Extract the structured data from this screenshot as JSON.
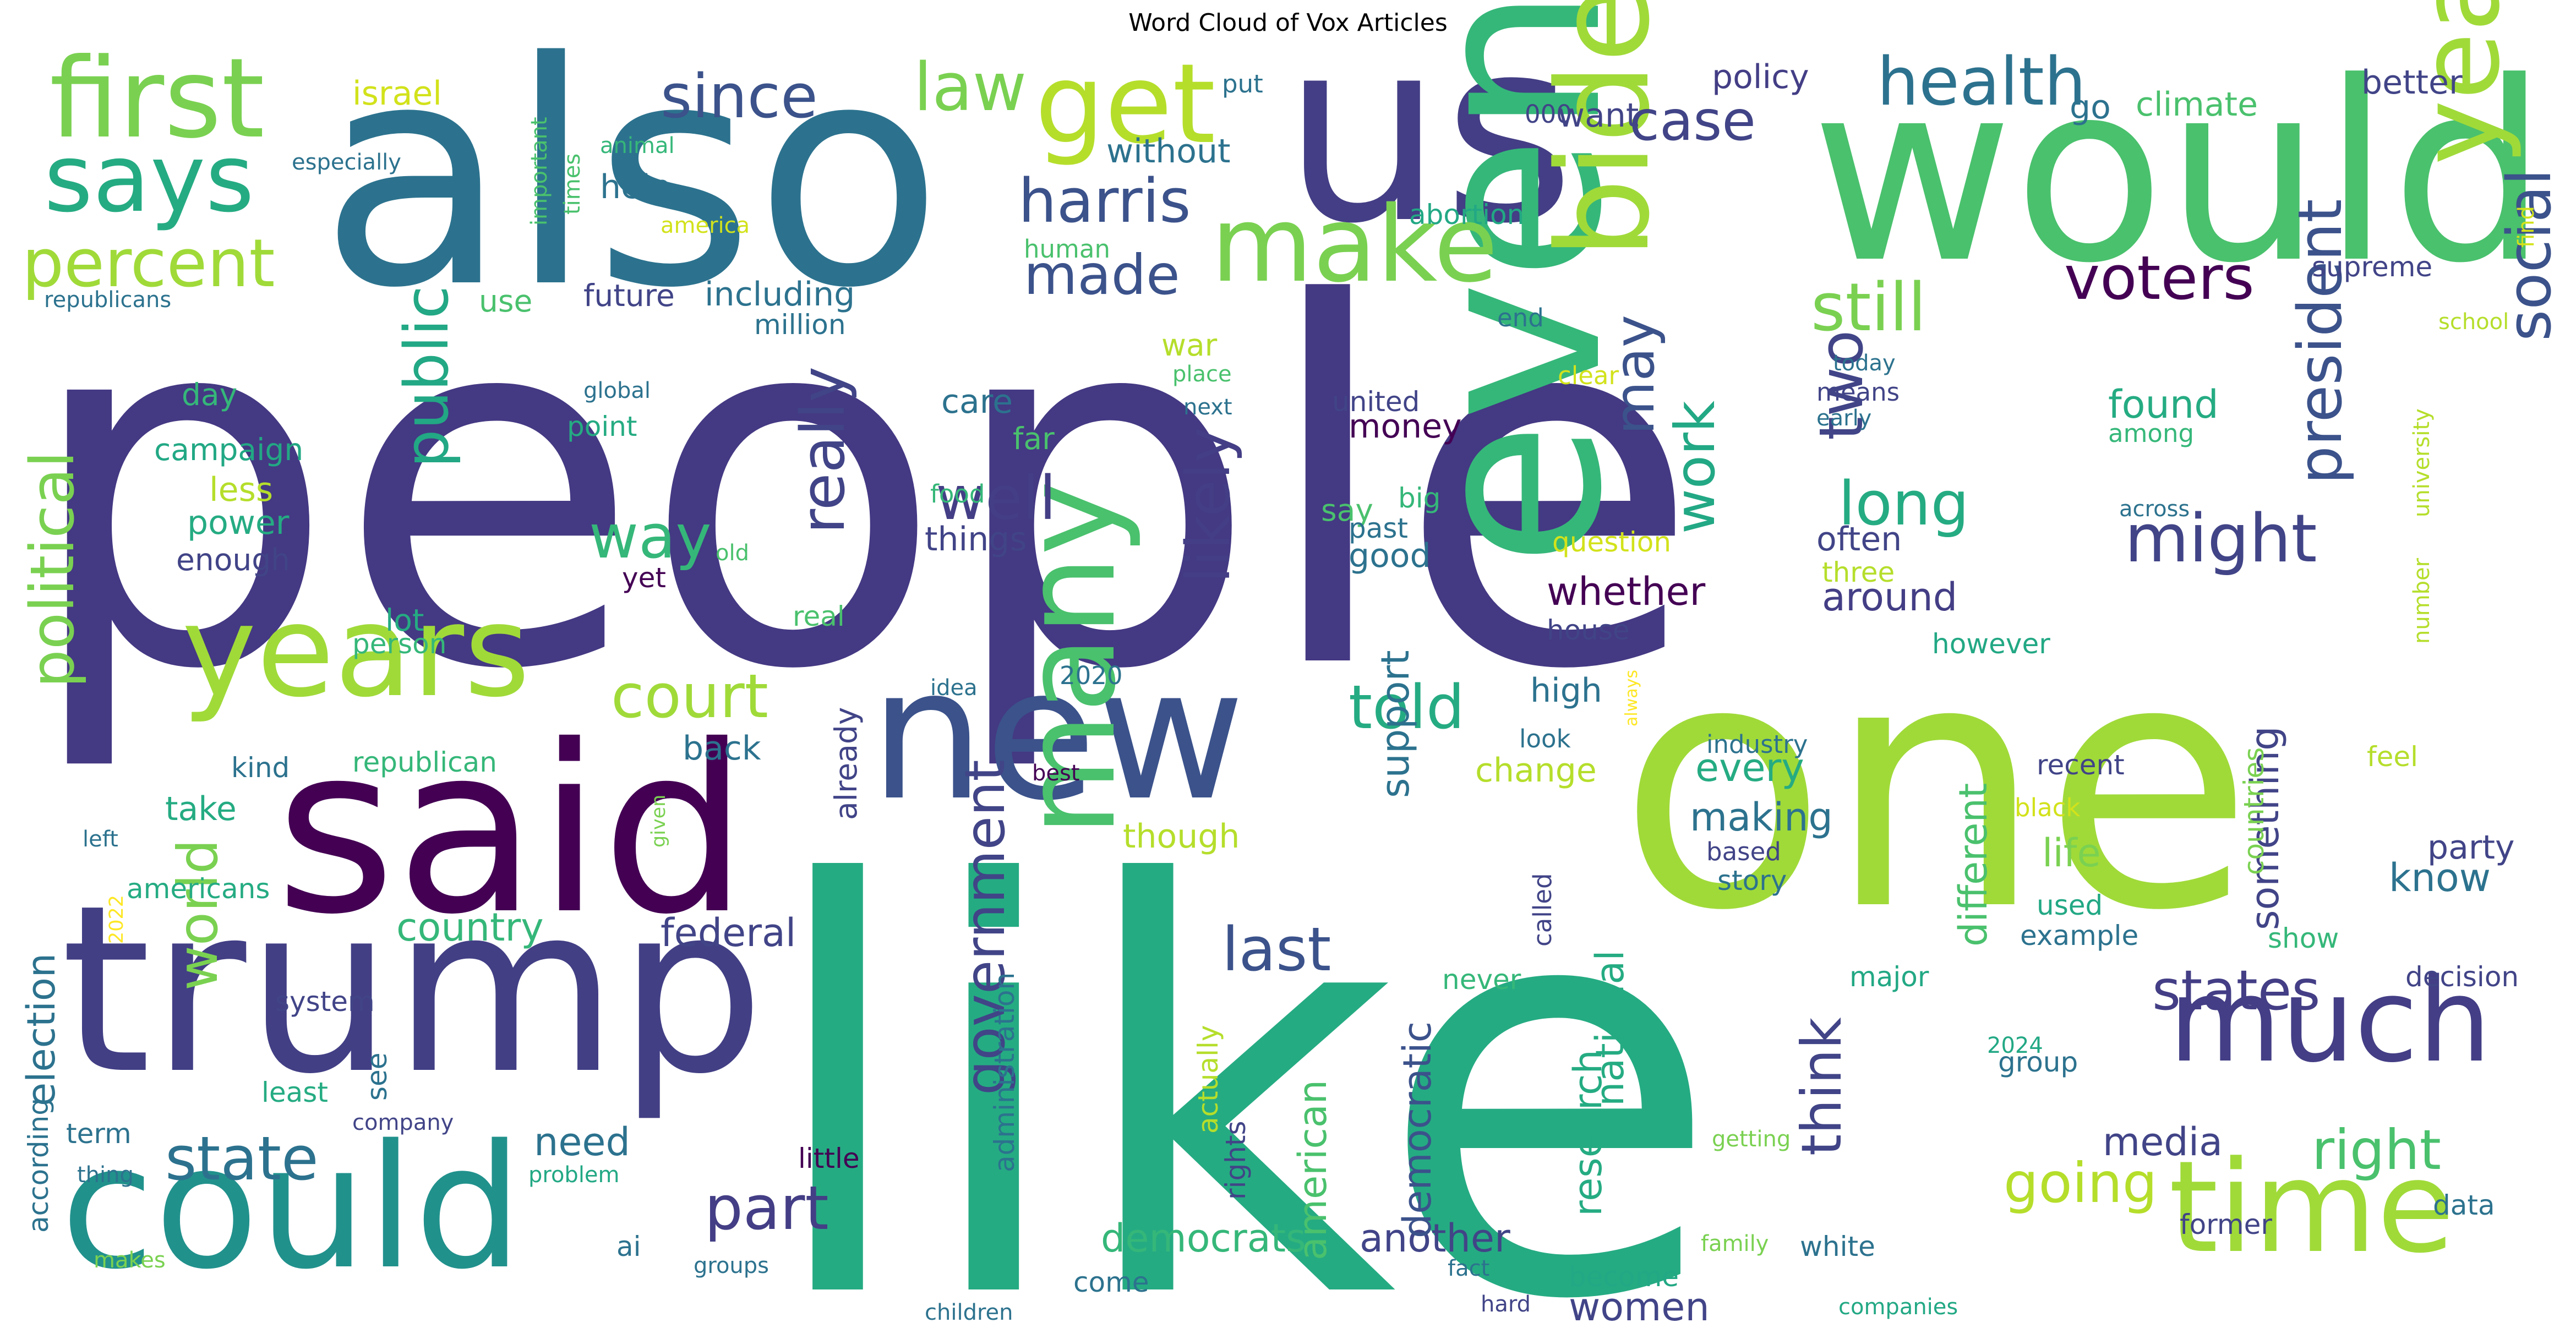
{
  "title": "Word Cloud of Vox Articles",
  "words": [
    {
      "text": "people",
      "color": "#443983"
    },
    {
      "text": "like",
      "color": "#25ab82"
    },
    {
      "text": "one",
      "color": "#a0da39"
    },
    {
      "text": "also",
      "color": "#2c728e"
    },
    {
      "text": "would",
      "color": "#4ac16d"
    },
    {
      "text": "us",
      "color": "#433e85"
    },
    {
      "text": "said",
      "color": "#440154"
    },
    {
      "text": "trump",
      "color": "#423f85"
    },
    {
      "text": "could",
      "color": "#21918c"
    },
    {
      "text": "even",
      "color": "#35b779"
    },
    {
      "text": "new",
      "color": "#3b528b"
    },
    {
      "text": "many",
      "color": "#4ac16d"
    },
    {
      "text": "biden",
      "color": "#a0da39"
    },
    {
      "text": "year",
      "color": "#a0da39"
    },
    {
      "text": "time",
      "color": "#a0da39"
    },
    {
      "text": "years",
      "color": "#a0da39"
    },
    {
      "text": "make",
      "color": "#7ad151"
    },
    {
      "text": "much",
      "color": "#433e85"
    },
    {
      "text": "first",
      "color": "#7ad151"
    },
    {
      "text": "get",
      "color": "#b5de2b"
    },
    {
      "text": "says",
      "color": "#25ab82"
    },
    {
      "text": "percent",
      "color": "#a0da39"
    },
    {
      "text": "since",
      "color": "#3b528b"
    },
    {
      "text": "law",
      "color": "#7ad151"
    },
    {
      "text": "health",
      "color": "#2c728e"
    },
    {
      "text": "case",
      "color": "#414487"
    },
    {
      "text": "harris",
      "color": "#3b528b"
    },
    {
      "text": "still",
      "color": "#7ad151"
    },
    {
      "text": "voters",
      "color": "#440154"
    },
    {
      "text": "made",
      "color": "#3b528b"
    },
    {
      "text": "might",
      "color": "#414487"
    },
    {
      "text": "president",
      "color": "#3b528b"
    },
    {
      "text": "social",
      "color": "#3b528b"
    },
    {
      "text": "political",
      "color": "#7ad151"
    },
    {
      "text": "public",
      "color": "#22a884"
    },
    {
      "text": "way",
      "color": "#35b779"
    },
    {
      "text": "well",
      "color": "#433e85"
    },
    {
      "text": "likely",
      "color": "#433e85"
    },
    {
      "text": "really",
      "color": "#414487"
    },
    {
      "text": "court",
      "color": "#a0da39"
    },
    {
      "text": "told",
      "color": "#25ab82"
    },
    {
      "text": "two",
      "color": "#414487"
    },
    {
      "text": "long",
      "color": "#25ab82"
    },
    {
      "text": "work",
      "color": "#22a884"
    },
    {
      "text": "may",
      "color": "#3b528b"
    },
    {
      "text": "state",
      "color": "#2c728e"
    },
    {
      "text": "part",
      "color": "#433e85"
    },
    {
      "text": "last",
      "color": "#3b528b"
    },
    {
      "text": "government",
      "color": "#414487"
    },
    {
      "text": "world",
      "color": "#7ad151"
    },
    {
      "text": "states",
      "color": "#433e85"
    },
    {
      "text": "right",
      "color": "#4ac16d"
    },
    {
      "text": "think",
      "color": "#414487"
    },
    {
      "text": "going",
      "color": "#b5de2b"
    },
    {
      "text": "country",
      "color": "#35b779"
    },
    {
      "text": "federal",
      "color": "#414487"
    },
    {
      "text": "election",
      "color": "#2c728e"
    },
    {
      "text": "need",
      "color": "#2c728e"
    },
    {
      "text": "democrats",
      "color": "#35b779"
    },
    {
      "text": "another",
      "color": "#414487"
    },
    {
      "text": "women",
      "color": "#414487"
    },
    {
      "text": "media",
      "color": "#414487"
    },
    {
      "text": "research",
      "color": "#25ab82"
    },
    {
      "text": "american",
      "color": "#4ac16d"
    },
    {
      "text": "democratic",
      "color": "#3b528b"
    },
    {
      "text": "support",
      "color": "#2c728e"
    },
    {
      "text": "national",
      "color": "#25ab82"
    },
    {
      "text": "different",
      "color": "#4ac16d"
    },
    {
      "text": "something",
      "color": "#414487"
    },
    {
      "text": "every",
      "color": "#25ab82"
    },
    {
      "text": "making",
      "color": "#2c728e"
    },
    {
      "text": "life",
      "color": "#7ad151"
    },
    {
      "text": "know",
      "color": "#2c728e"
    },
    {
      "text": "party",
      "color": "#414487"
    },
    {
      "text": "around",
      "color": "#433e85"
    },
    {
      "text": "whether",
      "color": "#440154"
    },
    {
      "text": "often",
      "color": "#414487"
    },
    {
      "text": "found",
      "color": "#25ab82"
    },
    {
      "text": "including",
      "color": "#2c728e"
    },
    {
      "text": "without",
      "color": "#2c728e"
    },
    {
      "text": "policy",
      "color": "#433e85"
    },
    {
      "text": "want",
      "color": "#414487"
    },
    {
      "text": "go",
      "color": "#2c728e"
    },
    {
      "text": "climate",
      "color": "#4ac16d"
    },
    {
      "text": "better",
      "color": "#414487"
    },
    {
      "text": "israel",
      "color": "#d2e21b"
    },
    {
      "text": "help",
      "color": "#2c728e"
    },
    {
      "text": "use",
      "color": "#4ac16d"
    },
    {
      "text": "future",
      "color": "#414487"
    },
    {
      "text": "million",
      "color": "#2c728e"
    },
    {
      "text": "day",
      "color": "#35b779"
    },
    {
      "text": "care",
      "color": "#2c728e"
    },
    {
      "text": "far",
      "color": "#4ac16d"
    },
    {
      "text": "things",
      "color": "#414487"
    },
    {
      "text": "good",
      "color": "#2c728e"
    },
    {
      "text": "money",
      "color": "#440154"
    },
    {
      "text": "say",
      "color": "#4ac16d"
    },
    {
      "text": "less",
      "color": "#b5de2b"
    },
    {
      "text": "power",
      "color": "#25ab82"
    },
    {
      "text": "campaign",
      "color": "#22a884"
    },
    {
      "text": "enough",
      "color": "#414487"
    },
    {
      "text": "point",
      "color": "#25ab82"
    },
    {
      "text": "lot",
      "color": "#25ab82"
    },
    {
      "text": "person",
      "color": "#35b779"
    },
    {
      "text": "war",
      "color": "#b5de2b"
    },
    {
      "text": "change",
      "color": "#b5de2b"
    },
    {
      "text": "high",
      "color": "#2c728e"
    },
    {
      "text": "back",
      "color": "#2c728e"
    },
    {
      "text": "though",
      "color": "#b5de2b"
    },
    {
      "text": "already",
      "color": "#414487"
    },
    {
      "text": "take",
      "color": "#25ab82"
    },
    {
      "text": "republican",
      "color": "#35b779"
    },
    {
      "text": "kind",
      "color": "#2c728e"
    },
    {
      "text": "americans",
      "color": "#25ab82"
    },
    {
      "text": "system",
      "color": "#414487"
    },
    {
      "text": "see",
      "color": "#2c728e"
    },
    {
      "text": "least",
      "color": "#25ab82"
    },
    {
      "text": "term",
      "color": "#2c728e"
    },
    {
      "text": "according",
      "color": "#2c728e"
    },
    {
      "text": "ai",
      "color": "#2c728e"
    },
    {
      "text": "little",
      "color": "#440154"
    },
    {
      "text": "actually",
      "color": "#b5de2b"
    },
    {
      "text": "administration",
      "color": "#2c728e"
    },
    {
      "text": "rights",
      "color": "#414487"
    },
    {
      "text": "united",
      "color": "#414487"
    },
    {
      "text": "past",
      "color": "#2c728e"
    },
    {
      "text": "big",
      "color": "#35b779"
    },
    {
      "text": "question",
      "color": "#d2e21b"
    },
    {
      "text": "yet",
      "color": "#440154"
    },
    {
      "text": "old",
      "color": "#4ac16d"
    },
    {
      "text": "real",
      "color": "#4ac16d"
    },
    {
      "text": "2020",
      "color": "#2c728e"
    },
    {
      "text": "idea",
      "color": "#2c728e"
    },
    {
      "text": "best",
      "color": "#440154"
    },
    {
      "text": "look",
      "color": "#2c728e"
    },
    {
      "text": "house",
      "color": "#414487"
    },
    {
      "text": "however",
      "color": "#22a884"
    },
    {
      "text": "three",
      "color": "#b5de2b"
    },
    {
      "text": "means",
      "color": "#414487"
    },
    {
      "text": "early",
      "color": "#2c728e"
    },
    {
      "text": "today",
      "color": "#2c728e"
    },
    {
      "text": "among",
      "color": "#35b779"
    },
    {
      "text": "across",
      "color": "#2c728e"
    },
    {
      "text": "university",
      "color": "#b5de2b"
    },
    {
      "text": "number",
      "color": "#b5de2b"
    },
    {
      "text": "school",
      "color": "#b5de2b"
    },
    {
      "text": "supreme",
      "color": "#414487"
    },
    {
      "text": "find",
      "color": "#d2e21b"
    },
    {
      "text": "000",
      "color": "#414487"
    },
    {
      "text": "put",
      "color": "#2c728e"
    },
    {
      "text": "abortion",
      "color": "#22a884"
    },
    {
      "text": "human",
      "color": "#4ac16d"
    },
    {
      "text": "food",
      "color": "#35b779"
    },
    {
      "text": "end",
      "color": "#2c728e"
    },
    {
      "text": "place",
      "color": "#4ac16d"
    },
    {
      "text": "next",
      "color": "#2c728e"
    },
    {
      "text": "clear",
      "color": "#d2e21b"
    },
    {
      "text": "global",
      "color": "#2c728e"
    },
    {
      "text": "important",
      "color": "#4ac16d"
    },
    {
      "text": "times",
      "color": "#4ac16d"
    },
    {
      "text": "animal",
      "color": "#35b779"
    },
    {
      "text": "especially",
      "color": "#2c728e"
    },
    {
      "text": "america",
      "color": "#d2e21b"
    },
    {
      "text": "republicans",
      "color": "#2c728e"
    },
    {
      "text": "industry",
      "color": "#2c728e"
    },
    {
      "text": "recent",
      "color": "#414487"
    },
    {
      "text": "feel",
      "color": "#b5de2b"
    },
    {
      "text": "black",
      "color": "#d2e21b"
    },
    {
      "text": "based",
      "color": "#414487"
    },
    {
      "text": "story",
      "color": "#2c728e"
    },
    {
      "text": "used",
      "color": "#22a884"
    },
    {
      "text": "example",
      "color": "#2c728e"
    },
    {
      "text": "show",
      "color": "#35b779"
    },
    {
      "text": "countries",
      "color": "#7ad151"
    },
    {
      "text": "called",
      "color": "#414487"
    },
    {
      "text": "never",
      "color": "#35b779"
    },
    {
      "text": "major",
      "color": "#22a884"
    },
    {
      "text": "decision",
      "color": "#414487"
    },
    {
      "text": "group",
      "color": "#2c728e"
    },
    {
      "text": "2024",
      "color": "#22a884"
    },
    {
      "text": "former",
      "color": "#414487"
    },
    {
      "text": "data",
      "color": "#2c728e"
    },
    {
      "text": "white",
      "color": "#2c728e"
    },
    {
      "text": "become",
      "color": "#22a884"
    },
    {
      "text": "fact",
      "color": "#2c728e"
    },
    {
      "text": "family",
      "color": "#7ad151"
    },
    {
      "text": "getting",
      "color": "#7ad151"
    },
    {
      "text": "always",
      "color": "#fde725"
    },
    {
      "text": "given",
      "color": "#7ad151"
    },
    {
      "text": "come",
      "color": "#2c728e"
    },
    {
      "text": "hard",
      "color": "#414487"
    },
    {
      "text": "companies",
      "color": "#22a884"
    },
    {
      "text": "children",
      "color": "#2c728e"
    },
    {
      "text": "groups",
      "color": "#2c728e"
    },
    {
      "text": "makes",
      "color": "#7ad151"
    },
    {
      "text": "problem",
      "color": "#22a884"
    },
    {
      "text": "thing",
      "color": "#2c728e"
    },
    {
      "text": "company",
      "color": "#414487"
    },
    {
      "text": "left",
      "color": "#2c728e"
    },
    {
      "text": "2022",
      "color": "#fde725"
    }
  ]
}
